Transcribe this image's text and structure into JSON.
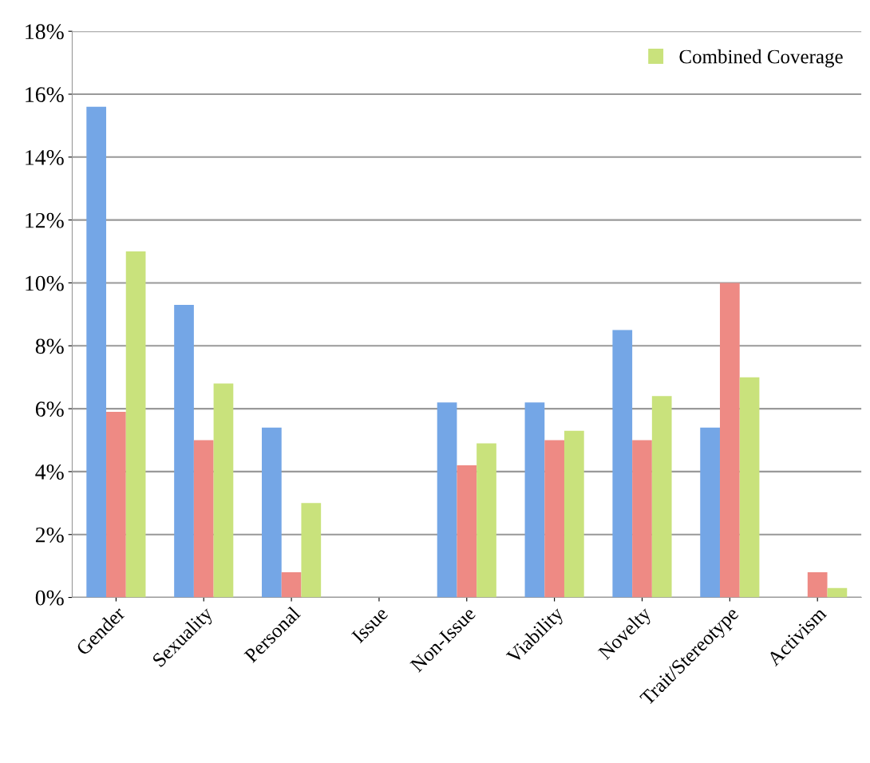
{
  "chart_data": {
    "type": "bar",
    "categories": [
      "Gender",
      "Sexuality",
      "Personal",
      "Issue",
      "Non-Issue",
      "Viability",
      "Novelty",
      "Trait/Stereotype",
      "Activism"
    ],
    "series": [
      {
        "color": "#74a6e6",
        "values": [
          15.6,
          9.3,
          5.4,
          0,
          6.2,
          6.2,
          8.5,
          5.4,
          0
        ]
      },
      {
        "color": "#ee8a84",
        "values": [
          5.9,
          5.0,
          0.8,
          0,
          4.2,
          5.0,
          5.0,
          10.0,
          0.8
        ]
      },
      {
        "name": "Combined Coverage",
        "color": "#c9e27c",
        "values": [
          11.0,
          6.8,
          3.0,
          0,
          4.9,
          5.3,
          6.4,
          7.0,
          0.3
        ]
      }
    ],
    "ylim": [
      0,
      18
    ],
    "yticks": [
      {
        "value": 0,
        "label": "0%"
      },
      {
        "value": 2,
        "label": "2%"
      },
      {
        "value": 4,
        "label": "4%"
      },
      {
        "value": 6,
        "label": "6%"
      },
      {
        "value": 8,
        "label": "8%"
      },
      {
        "value": 10,
        "label": "10%"
      },
      {
        "value": 12,
        "label": "12%"
      },
      {
        "value": 14,
        "label": "14%"
      },
      {
        "value": 16,
        "label": "16%"
      },
      {
        "value": 18,
        "label": "18%"
      }
    ],
    "grid": "y",
    "legend": "top right"
  }
}
